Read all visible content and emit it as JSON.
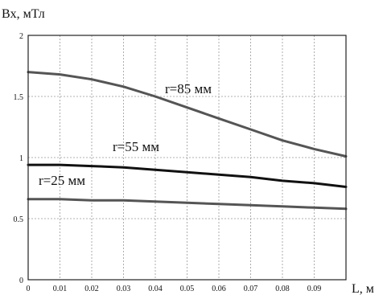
{
  "chart_data": {
    "type": "line",
    "ylabel": "Bx, мТл",
    "xlabel": "L, м",
    "xlim": [
      0,
      0.1
    ],
    "ylim": [
      0,
      2
    ],
    "x_ticks": [
      "0",
      "0.01",
      "0.02",
      "0.03",
      "0.04",
      "0.05",
      "0.06",
      "0.07",
      "0.08",
      "0.09"
    ],
    "y_ticks": [
      "0",
      "0.5",
      "1",
      "1.5",
      "2"
    ],
    "grid": true,
    "series": [
      {
        "name": "r=85 мм",
        "x": [
          0,
          0.01,
          0.02,
          0.03,
          0.04,
          0.05,
          0.06,
          0.07,
          0.08,
          0.09,
          0.1
        ],
        "y": [
          1.7,
          1.68,
          1.64,
          1.58,
          1.5,
          1.41,
          1.32,
          1.23,
          1.14,
          1.07,
          1.01
        ],
        "color": "#555555"
      },
      {
        "name": "r=55 мм",
        "x": [
          0,
          0.01,
          0.02,
          0.03,
          0.04,
          0.05,
          0.06,
          0.07,
          0.08,
          0.09,
          0.1
        ],
        "y": [
          0.94,
          0.94,
          0.93,
          0.92,
          0.9,
          0.88,
          0.86,
          0.84,
          0.81,
          0.79,
          0.76
        ],
        "color": "#111111"
      },
      {
        "name": "r=25 мм",
        "x": [
          0,
          0.01,
          0.02,
          0.03,
          0.04,
          0.05,
          0.06,
          0.07,
          0.08,
          0.09,
          0.1
        ],
        "y": [
          0.66,
          0.66,
          0.65,
          0.65,
          0.64,
          0.63,
          0.62,
          0.61,
          0.6,
          0.59,
          0.58
        ],
        "color": "#555555"
      }
    ]
  }
}
